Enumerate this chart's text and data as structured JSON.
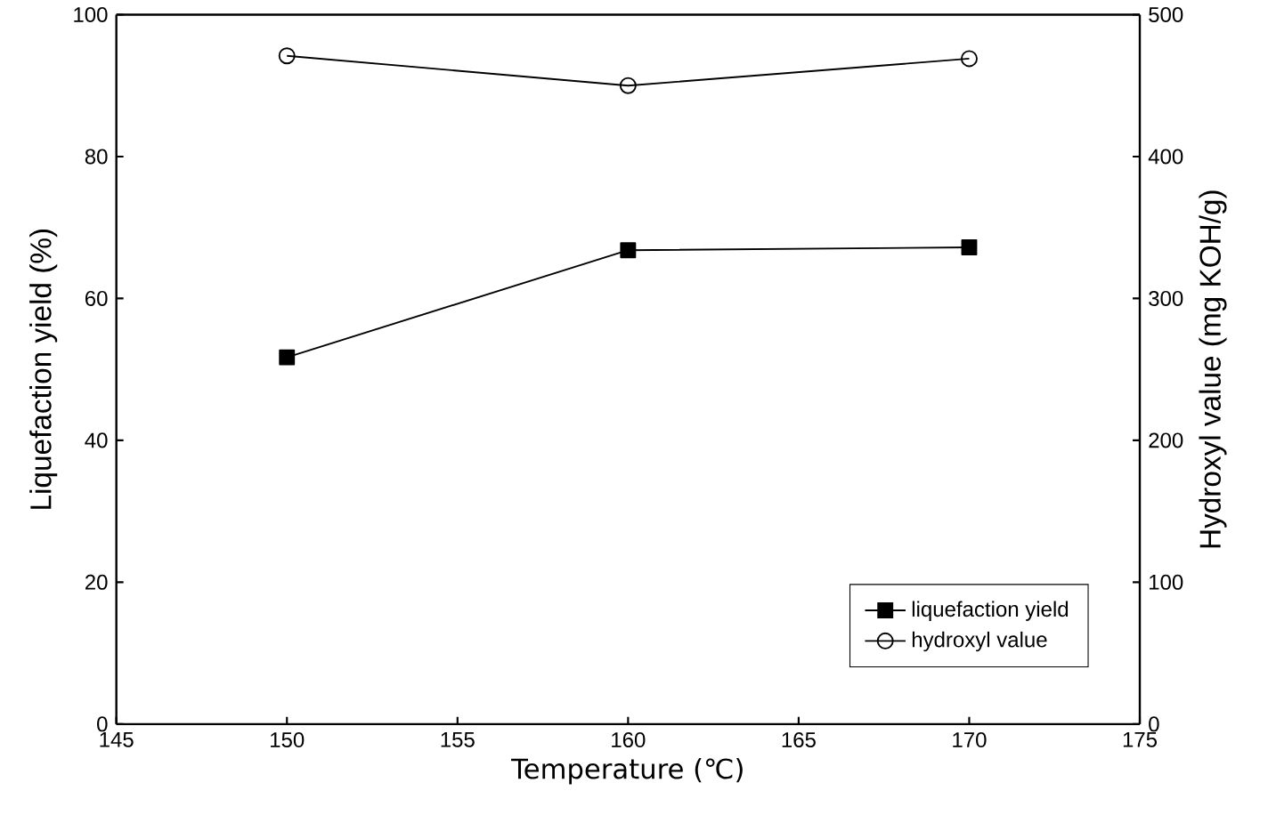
{
  "chart_data": {
    "type": "line",
    "xlabel": "Temperature (℃)",
    "ylabel": "Liquefaction yield (%)",
    "y2label": "Hydroxyl value (mg  KOH/g)",
    "x": [
      150,
      160,
      170
    ],
    "series": [
      {
        "name": "liquefaction yield",
        "color": "#000000",
        "marker": "square",
        "values": [
          51.7,
          66.8,
          67.2
        ]
      },
      {
        "name": "hydroxyl value",
        "color": "#000000",
        "marker": "circle",
        "axis": "y2",
        "values": [
          471,
          450,
          469
        ]
      }
    ],
    "xlim": [
      145,
      175
    ],
    "xticks": [
      145,
      150,
      155,
      160,
      165,
      170,
      175
    ],
    "ylim": [
      0,
      100
    ],
    "yticks": [
      0,
      20,
      40,
      60,
      80,
      100
    ],
    "y2lim": [
      0,
      500
    ],
    "y2ticks": [
      0,
      100,
      200,
      300,
      400,
      500
    ],
    "legend": "bottom right",
    "grid": false,
    "line_style": "solid"
  }
}
